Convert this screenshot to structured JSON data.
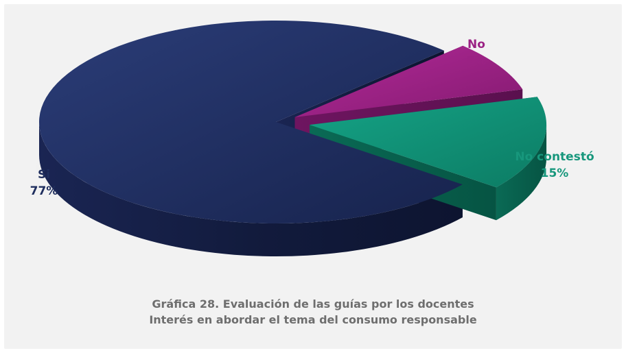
{
  "chart_data": {
    "type": "pie",
    "title": "",
    "categories": [
      "Si",
      "No",
      "No contestó"
    ],
    "values": [
      77,
      8,
      15
    ],
    "value_labels": [
      "77%",
      "8%",
      "15%"
    ],
    "colors": [
      "#1c2a5a",
      "#9a1f83",
      "#0f8f74"
    ],
    "label_colors": [
      "#1f2e5e",
      "#9b2284",
      "#17977c"
    ],
    "style": "3d-exploded"
  },
  "caption": {
    "line1": "Gráfica 28. Evaluación de las guías por los docentes",
    "line2": "Interés en abordar el tema del consumo responsable"
  }
}
